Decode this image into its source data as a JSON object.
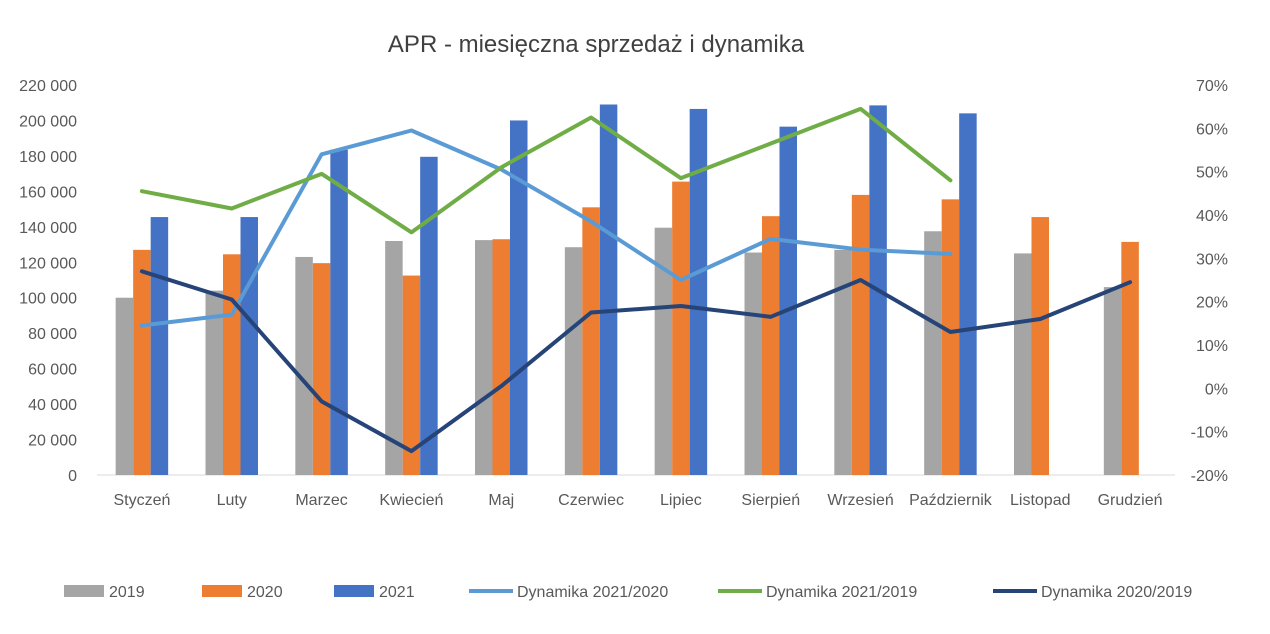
{
  "chart_data": {
    "type": "bar",
    "title": "APR - miesięczna sprzedaż i dynamika",
    "categories": [
      "Styczeń",
      "Luty",
      "Marzec",
      "Kwiecień",
      "Maj",
      "Czerwiec",
      "Lipiec",
      "Sierpień",
      "Wrzesień",
      "Październik",
      "Listopad",
      "Grudzień"
    ],
    "y_left": {
      "ylim": [
        0,
        220000
      ],
      "ticks": [
        0,
        20000,
        40000,
        60000,
        80000,
        100000,
        120000,
        140000,
        160000,
        180000,
        200000,
        220000
      ],
      "tick_labels": [
        "0",
        "20 000",
        "40 000",
        "60 000",
        "80 000",
        "100 000",
        "120 000",
        "140 000",
        "160 000",
        "180 000",
        "200 000",
        "220 000"
      ]
    },
    "y_right": {
      "ylim": [
        -0.2,
        0.7
      ],
      "ticks": [
        -0.2,
        -0.1,
        0,
        0.1,
        0.2,
        0.3,
        0.4,
        0.5,
        0.6,
        0.7
      ],
      "tick_labels": [
        "-20%",
        "-10%",
        "0%",
        "10%",
        "20%",
        "30%",
        "40%",
        "50%",
        "60%",
        "70%"
      ]
    },
    "bar_series": [
      {
        "name": "2019",
        "color": "#a5a5a5",
        "values": [
          100000,
          104000,
          123000,
          132000,
          132500,
          128500,
          139500,
          125500,
          127000,
          137500,
          125000,
          106000
        ]
      },
      {
        "name": "2020",
        "color": "#ed7d31",
        "values": [
          127000,
          124500,
          119500,
          112500,
          133000,
          151000,
          165500,
          146000,
          158000,
          155500,
          145500,
          131500
        ]
      },
      {
        "name": "2021",
        "color": "#4472c4",
        "values": [
          145500,
          145500,
          183500,
          179500,
          200000,
          209000,
          206500,
          196500,
          208500,
          204000,
          null,
          null
        ]
      }
    ],
    "line_series": [
      {
        "name": "Dynamika 2021/2020",
        "color": "#5b9bd5",
        "axis": "right",
        "values": [
          0.145,
          0.17,
          0.54,
          0.595,
          0.505,
          0.385,
          0.25,
          0.345,
          0.32,
          0.31,
          null,
          null
        ]
      },
      {
        "name": "Dynamika 2021/2019",
        "color": "#70ad47",
        "axis": "right",
        "values": [
          0.455,
          0.415,
          0.495,
          0.36,
          0.51,
          0.625,
          0.485,
          0.565,
          0.645,
          0.48,
          null,
          null
        ]
      },
      {
        "name": "Dynamika 2020/2019",
        "color": "#264478",
        "axis": "right",
        "values": [
          0.27,
          0.205,
          -0.03,
          -0.145,
          0.005,
          0.175,
          0.19,
          0.165,
          0.25,
          0.13,
          0.16,
          0.245
        ]
      }
    ],
    "grid": false,
    "legend_position": "bottom"
  }
}
